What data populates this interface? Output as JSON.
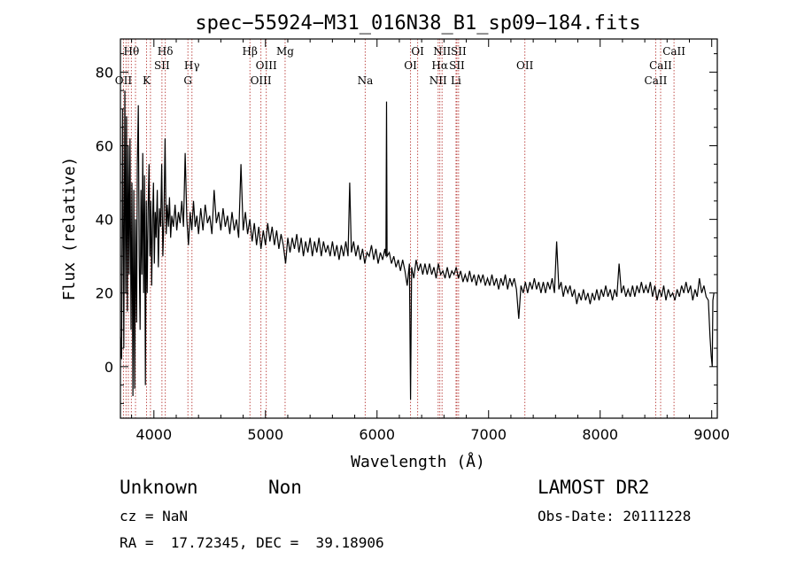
{
  "chart_data": {
    "type": "line",
    "title": "spec−55924−M31_016N38_B1_sp09−184.fits",
    "xlabel": "Wavelength (Å)",
    "ylabel": "Flux (relative)",
    "xlim": [
      3700,
      9050
    ],
    "ylim": [
      -14,
      89
    ],
    "xticks": [
      4000,
      5000,
      6000,
      7000,
      8000,
      9000
    ],
    "yticks": [
      0,
      20,
      40,
      60,
      80
    ],
    "series_color": "#000000",
    "line_color": "#c0504d",
    "lines": [
      {
        "w": 3727,
        "label": "OII",
        "row": 3
      },
      {
        "w": 3750,
        "label": "",
        "row": 3
      },
      {
        "w": 3771,
        "label": "",
        "row": 3
      },
      {
        "w": 3798,
        "label": "Hθ",
        "row": 1
      },
      {
        "w": 3835,
        "label": "",
        "row": 1
      },
      {
        "w": 3934,
        "label": "K",
        "row": 3
      },
      {
        "w": 3969,
        "label": "",
        "row": 3
      },
      {
        "w": 4072,
        "label": "SII",
        "row": 2
      },
      {
        "w": 4102,
        "label": "Hδ",
        "row": 1
      },
      {
        "w": 4305,
        "label": "G",
        "row": 3
      },
      {
        "w": 4341,
        "label": "Hγ",
        "row": 2
      },
      {
        "w": 4861,
        "label": "Hβ",
        "row": 1
      },
      {
        "w": 4959,
        "label": "OIII",
        "row": 3
      },
      {
        "w": 5007,
        "label": "OIII",
        "row": 2
      },
      {
        "w": 5176,
        "label": "Mg",
        "row": 1
      },
      {
        "w": 5894,
        "label": "Na",
        "row": 3
      },
      {
        "w": 6300,
        "label": "OI",
        "row": 2
      },
      {
        "w": 6364,
        "label": "OI",
        "row": 1
      },
      {
        "w": 6548,
        "label": "NII",
        "row": 3
      },
      {
        "w": 6563,
        "label": "Hα",
        "row": 2
      },
      {
        "w": 6583,
        "label": "NII",
        "row": 1
      },
      {
        "w": 6708,
        "label": "Li",
        "row": 3
      },
      {
        "w": 6716,
        "label": "SII",
        "row": 2
      },
      {
        "w": 6731,
        "label": "SII",
        "row": 1
      },
      {
        "w": 7325,
        "label": "OII",
        "row": 2
      },
      {
        "w": 8498,
        "label": "CaII",
        "row": 3
      },
      {
        "w": 8542,
        "label": "CaII",
        "row": 2
      },
      {
        "w": 8662,
        "label": "CaII",
        "row": 1
      }
    ],
    "spectrum": [
      [
        3700,
        8
      ],
      [
        3710,
        2
      ],
      [
        3720,
        70
      ],
      [
        3730,
        5
      ],
      [
        3740,
        75
      ],
      [
        3748,
        20
      ],
      [
        3755,
        68
      ],
      [
        3762,
        15
      ],
      [
        3770,
        60
      ],
      [
        3778,
        25
      ],
      [
        3786,
        62
      ],
      [
        3795,
        10
      ],
      [
        3803,
        50
      ],
      [
        3812,
        -8
      ],
      [
        3820,
        48
      ],
      [
        3828,
        -6
      ],
      [
        3836,
        40
      ],
      [
        3845,
        12
      ],
      [
        3852,
        55
      ],
      [
        3860,
        71
      ],
      [
        3868,
        30
      ],
      [
        3876,
        10
      ],
      [
        3884,
        48
      ],
      [
        3892,
        25
      ],
      [
        3900,
        58
      ],
      [
        3908,
        20
      ],
      [
        3916,
        52
      ],
      [
        3924,
        -5
      ],
      [
        3932,
        45
      ],
      [
        3940,
        20
      ],
      [
        3948,
        42
      ],
      [
        3956,
        55
      ],
      [
        3964,
        30
      ],
      [
        3972,
        45
      ],
      [
        3980,
        22
      ],
      [
        3988,
        40
      ],
      [
        3996,
        50
      ],
      [
        4004,
        28
      ],
      [
        4012,
        42
      ],
      [
        4020,
        35
      ],
      [
        4030,
        48
      ],
      [
        4040,
        27
      ],
      [
        4050,
        43
      ],
      [
        4060,
        38
      ],
      [
        4070,
        55
      ],
      [
        4080,
        30
      ],
      [
        4090,
        40
      ],
      [
        4100,
        62
      ],
      [
        4110,
        36
      ],
      [
        4120,
        44
      ],
      [
        4130,
        38
      ],
      [
        4140,
        46
      ],
      [
        4150,
        35
      ],
      [
        4160,
        41
      ],
      [
        4175,
        38
      ],
      [
        4190,
        44
      ],
      [
        4205,
        37
      ],
      [
        4220,
        42
      ],
      [
        4235,
        39
      ],
      [
        4250,
        45
      ],
      [
        4265,
        38
      ],
      [
        4280,
        58
      ],
      [
        4295,
        40
      ],
      [
        4310,
        33
      ],
      [
        4325,
        42
      ],
      [
        4340,
        37
      ],
      [
        4355,
        45
      ],
      [
        4370,
        38
      ],
      [
        4385,
        41
      ],
      [
        4400,
        36
      ],
      [
        4420,
        43
      ],
      [
        4440,
        37
      ],
      [
        4460,
        44
      ],
      [
        4480,
        39
      ],
      [
        4500,
        41
      ],
      [
        4520,
        36
      ],
      [
        4540,
        48
      ],
      [
        4560,
        39
      ],
      [
        4580,
        42
      ],
      [
        4600,
        37
      ],
      [
        4620,
        43
      ],
      [
        4640,
        38
      ],
      [
        4660,
        41
      ],
      [
        4680,
        36
      ],
      [
        4700,
        42
      ],
      [
        4720,
        37
      ],
      [
        4740,
        40
      ],
      [
        4760,
        35
      ],
      [
        4780,
        55
      ],
      [
        4800,
        37
      ],
      [
        4820,
        42
      ],
      [
        4840,
        36
      ],
      [
        4860,
        40
      ],
      [
        4880,
        34
      ],
      [
        4900,
        39
      ],
      [
        4920,
        33
      ],
      [
        4940,
        38
      ],
      [
        4960,
        32
      ],
      [
        4980,
        37
      ],
      [
        5000,
        33
      ],
      [
        5020,
        39
      ],
      [
        5040,
        34
      ],
      [
        5060,
        38
      ],
      [
        5080,
        33
      ],
      [
        5100,
        37
      ],
      [
        5120,
        32
      ],
      [
        5140,
        36
      ],
      [
        5160,
        33
      ],
      [
        5180,
        28
      ],
      [
        5200,
        35
      ],
      [
        5220,
        31
      ],
      [
        5240,
        35
      ],
      [
        5260,
        32
      ],
      [
        5280,
        36
      ],
      [
        5300,
        31
      ],
      [
        5320,
        35
      ],
      [
        5340,
        30
      ],
      [
        5360,
        34
      ],
      [
        5380,
        31
      ],
      [
        5400,
        35
      ],
      [
        5420,
        30
      ],
      [
        5440,
        34
      ],
      [
        5460,
        31
      ],
      [
        5480,
        35
      ],
      [
        5500,
        30
      ],
      [
        5520,
        34
      ],
      [
        5540,
        31
      ],
      [
        5560,
        33
      ],
      [
        5580,
        30
      ],
      [
        5600,
        34
      ],
      [
        5620,
        30
      ],
      [
        5640,
        33
      ],
      [
        5660,
        29
      ],
      [
        5680,
        33
      ],
      [
        5700,
        30
      ],
      [
        5720,
        34
      ],
      [
        5740,
        30
      ],
      [
        5755,
        50
      ],
      [
        5770,
        31
      ],
      [
        5790,
        34
      ],
      [
        5810,
        30
      ],
      [
        5830,
        33
      ],
      [
        5850,
        29
      ],
      [
        5870,
        32
      ],
      [
        5890,
        28
      ],
      [
        5910,
        31
      ],
      [
        5930,
        30
      ],
      [
        5950,
        33
      ],
      [
        5970,
        29
      ],
      [
        5990,
        32
      ],
      [
        6010,
        28
      ],
      [
        6030,
        31
      ],
      [
        6050,
        29
      ],
      [
        6070,
        32
      ],
      [
        6080,
        30
      ],
      [
        6085,
        72
      ],
      [
        6090,
        30
      ],
      [
        6110,
        31
      ],
      [
        6130,
        28
      ],
      [
        6150,
        30
      ],
      [
        6170,
        27
      ],
      [
        6190,
        29
      ],
      [
        6210,
        26
      ],
      [
        6230,
        29
      ],
      [
        6250,
        26
      ],
      [
        6270,
        22
      ],
      [
        6290,
        28
      ],
      [
        6300,
        -9
      ],
      [
        6310,
        27
      ],
      [
        6330,
        24
      ],
      [
        6350,
        29
      ],
      [
        6370,
        26
      ],
      [
        6390,
        28
      ],
      [
        6410,
        25
      ],
      [
        6430,
        28
      ],
      [
        6450,
        25
      ],
      [
        6470,
        28
      ],
      [
        6490,
        25
      ],
      [
        6510,
        27
      ],
      [
        6530,
        24
      ],
      [
        6550,
        28
      ],
      [
        6570,
        25
      ],
      [
        6590,
        26
      ],
      [
        6610,
        24
      ],
      [
        6630,
        27
      ],
      [
        6650,
        24
      ],
      [
        6670,
        26
      ],
      [
        6690,
        25
      ],
      [
        6710,
        27
      ],
      [
        6730,
        24
      ],
      [
        6750,
        26
      ],
      [
        6770,
        23
      ],
      [
        6790,
        25
      ],
      [
        6810,
        23
      ],
      [
        6830,
        26
      ],
      [
        6850,
        23
      ],
      [
        6870,
        25
      ],
      [
        6890,
        22
      ],
      [
        6910,
        25
      ],
      [
        6930,
        23
      ],
      [
        6950,
        25
      ],
      [
        6970,
        22
      ],
      [
        6990,
        24
      ],
      [
        7010,
        22
      ],
      [
        7030,
        25
      ],
      [
        7050,
        22
      ],
      [
        7070,
        24
      ],
      [
        7090,
        21
      ],
      [
        7110,
        24
      ],
      [
        7130,
        22
      ],
      [
        7150,
        25
      ],
      [
        7170,
        21
      ],
      [
        7190,
        24
      ],
      [
        7210,
        22
      ],
      [
        7230,
        24
      ],
      [
        7250,
        21
      ],
      [
        7270,
        13
      ],
      [
        7290,
        22
      ],
      [
        7310,
        20
      ],
      [
        7330,
        23
      ],
      [
        7350,
        20
      ],
      [
        7370,
        23
      ],
      [
        7390,
        21
      ],
      [
        7410,
        24
      ],
      [
        7430,
        21
      ],
      [
        7450,
        23
      ],
      [
        7470,
        20
      ],
      [
        7490,
        23
      ],
      [
        7510,
        20
      ],
      [
        7530,
        23
      ],
      [
        7550,
        21
      ],
      [
        7570,
        24
      ],
      [
        7590,
        20
      ],
      [
        7610,
        34
      ],
      [
        7630,
        21
      ],
      [
        7650,
        23
      ],
      [
        7670,
        19
      ],
      [
        7690,
        22
      ],
      [
        7710,
        20
      ],
      [
        7730,
        22
      ],
      [
        7750,
        19
      ],
      [
        7770,
        21
      ],
      [
        7790,
        17
      ],
      [
        7810,
        20
      ],
      [
        7830,
        18
      ],
      [
        7850,
        21
      ],
      [
        7870,
        18
      ],
      [
        7890,
        20
      ],
      [
        7910,
        17
      ],
      [
        7930,
        20
      ],
      [
        7950,
        18
      ],
      [
        7970,
        21
      ],
      [
        7990,
        18
      ],
      [
        8010,
        21
      ],
      [
        8030,
        19
      ],
      [
        8050,
        22
      ],
      [
        8070,
        19
      ],
      [
        8090,
        21
      ],
      [
        8110,
        18
      ],
      [
        8130,
        21
      ],
      [
        8150,
        19
      ],
      [
        8170,
        28
      ],
      [
        8190,
        20
      ],
      [
        8210,
        22
      ],
      [
        8230,
        19
      ],
      [
        8250,
        21
      ],
      [
        8270,
        19
      ],
      [
        8290,
        22
      ],
      [
        8310,
        19
      ],
      [
        8330,
        22
      ],
      [
        8350,
        20
      ],
      [
        8370,
        23
      ],
      [
        8390,
        20
      ],
      [
        8410,
        22
      ],
      [
        8430,
        20
      ],
      [
        8450,
        23
      ],
      [
        8470,
        19
      ],
      [
        8490,
        22
      ],
      [
        8510,
        18
      ],
      [
        8530,
        21
      ],
      [
        8550,
        19
      ],
      [
        8570,
        22
      ],
      [
        8590,
        18
      ],
      [
        8610,
        21
      ],
      [
        8630,
        19
      ],
      [
        8650,
        20
      ],
      [
        8670,
        18
      ],
      [
        8690,
        21
      ],
      [
        8710,
        19
      ],
      [
        8730,
        22
      ],
      [
        8750,
        20
      ],
      [
        8770,
        23
      ],
      [
        8790,
        20
      ],
      [
        8810,
        22
      ],
      [
        8830,
        18
      ],
      [
        8850,
        21
      ],
      [
        8870,
        19
      ],
      [
        8890,
        24
      ],
      [
        8910,
        20
      ],
      [
        8930,
        22
      ],
      [
        8950,
        19
      ],
      [
        8970,
        18
      ],
      [
        8985,
        8
      ],
      [
        8995,
        3
      ],
      [
        9005,
        0
      ],
      [
        9010,
        18
      ],
      [
        9020,
        20
      ]
    ]
  },
  "footer": {
    "object_name": "Unknown",
    "object_class": "Non",
    "survey": "LAMOST DR2",
    "cz": "cz = NaN",
    "obs_date": "Obs-Date: 20111228",
    "radec": "RA =  17.72345, DEC =  39.18906"
  }
}
